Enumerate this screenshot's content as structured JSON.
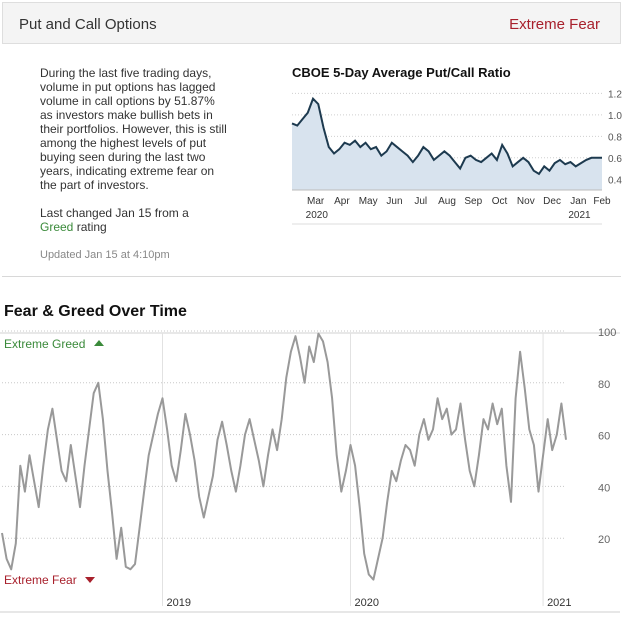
{
  "header": {
    "title": "Put and Call Options",
    "rating": "Extreme Fear"
  },
  "description": "During the last five trading days, volume in put options has lagged volume in call options by 51.87% as investors make bullish bets in their portfolios. However, this is still among the highest levels of put buying seen during the last two years, indicating extreme fear on the part of investors.",
  "last_changed": {
    "prefix": "Last changed Jan 15 from a",
    "from_rating": "Greed",
    "suffix": "rating"
  },
  "updated": "Updated Jan 15 at 4:10pm",
  "section_title": "Fear & Greed Over Time",
  "colors": {
    "fear": "#a8202c",
    "greed": "#3a8a3a",
    "line_put_call": "#1d3a4f",
    "area_put_call": "#d8e3ee",
    "line_fng": "#999999"
  },
  "chart_data": [
    {
      "type": "area",
      "title": "CBOE 5-Day Average Put/Call Ratio",
      "xlabel": "",
      "ylabel": "",
      "ylim": [
        0.3,
        1.25
      ],
      "yticks": [
        "1.2",
        "1.0",
        "0.8",
        "0.6",
        "0.4"
      ],
      "ytick_values": [
        1.2,
        1.0,
        0.8,
        0.6,
        0.4
      ],
      "x_tick_labels": [
        "Mar",
        "Apr",
        "May",
        "Jun",
        "Jul",
        "Aug",
        "Sep",
        "Oct",
        "Nov",
        "Dec",
        "Jan",
        "Feb"
      ],
      "x_year_labels": [
        "2020",
        "2021"
      ],
      "x_range": [
        0,
        59
      ],
      "x_ticks_at": [
        4.5,
        9.5,
        14.5,
        19.5,
        24.5,
        29.5,
        34.5,
        39.5,
        44.5,
        49.5,
        54.5,
        59
      ],
      "values": [
        0.92,
        0.9,
        0.96,
        1.02,
        1.15,
        1.1,
        0.88,
        0.7,
        0.64,
        0.68,
        0.74,
        0.72,
        0.76,
        0.7,
        0.74,
        0.68,
        0.7,
        0.62,
        0.66,
        0.74,
        0.7,
        0.66,
        0.62,
        0.56,
        0.62,
        0.7,
        0.66,
        0.58,
        0.62,
        0.66,
        0.62,
        0.56,
        0.5,
        0.6,
        0.62,
        0.58,
        0.56,
        0.6,
        0.64,
        0.58,
        0.72,
        0.64,
        0.52,
        0.56,
        0.6,
        0.56,
        0.48,
        0.45,
        0.52,
        0.48,
        0.55,
        0.58,
        0.54,
        0.56,
        0.52,
        0.55,
        0.58,
        0.6,
        0.6,
        0.6
      ]
    },
    {
      "type": "line",
      "title": "Fear & Greed Over Time",
      "labels_top": "Extreme Greed",
      "labels_bottom": "Extreme Fear",
      "ylim": [
        0,
        100
      ],
      "yticks": [
        "100",
        "80",
        "60",
        "40",
        "20"
      ],
      "ytick_values": [
        100,
        80,
        60,
        40,
        20
      ],
      "x_year_labels": [
        "2019",
        "2020",
        "2021"
      ],
      "x_range": [
        0,
        123
      ],
      "x_years_at": [
        35,
        76,
        118
      ],
      "values": [
        22,
        12,
        8,
        18,
        48,
        38,
        52,
        42,
        32,
        48,
        62,
        70,
        58,
        46,
        42,
        56,
        44,
        32,
        48,
        62,
        76,
        80,
        66,
        46,
        30,
        12,
        24,
        9,
        8,
        10,
        24,
        38,
        52,
        60,
        68,
        74,
        62,
        48,
        42,
        54,
        68,
        60,
        50,
        36,
        28,
        36,
        44,
        58,
        65,
        56,
        46,
        38,
        48,
        60,
        66,
        58,
        50,
        40,
        52,
        62,
        54,
        66,
        82,
        92,
        98,
        90,
        80,
        94,
        88,
        99,
        96,
        88,
        74,
        52,
        38,
        46,
        56,
        48,
        32,
        14,
        6,
        4,
        12,
        20,
        34,
        46,
        42,
        50,
        56,
        54,
        48,
        60,
        66,
        58,
        62,
        74,
        66,
        70,
        60,
        62,
        72,
        58,
        46,
        40,
        52,
        66,
        62,
        72,
        64,
        70,
        48,
        34,
        74,
        92,
        78,
        62,
        56,
        38,
        52,
        66,
        54,
        60,
        72,
        58
      ]
    }
  ]
}
